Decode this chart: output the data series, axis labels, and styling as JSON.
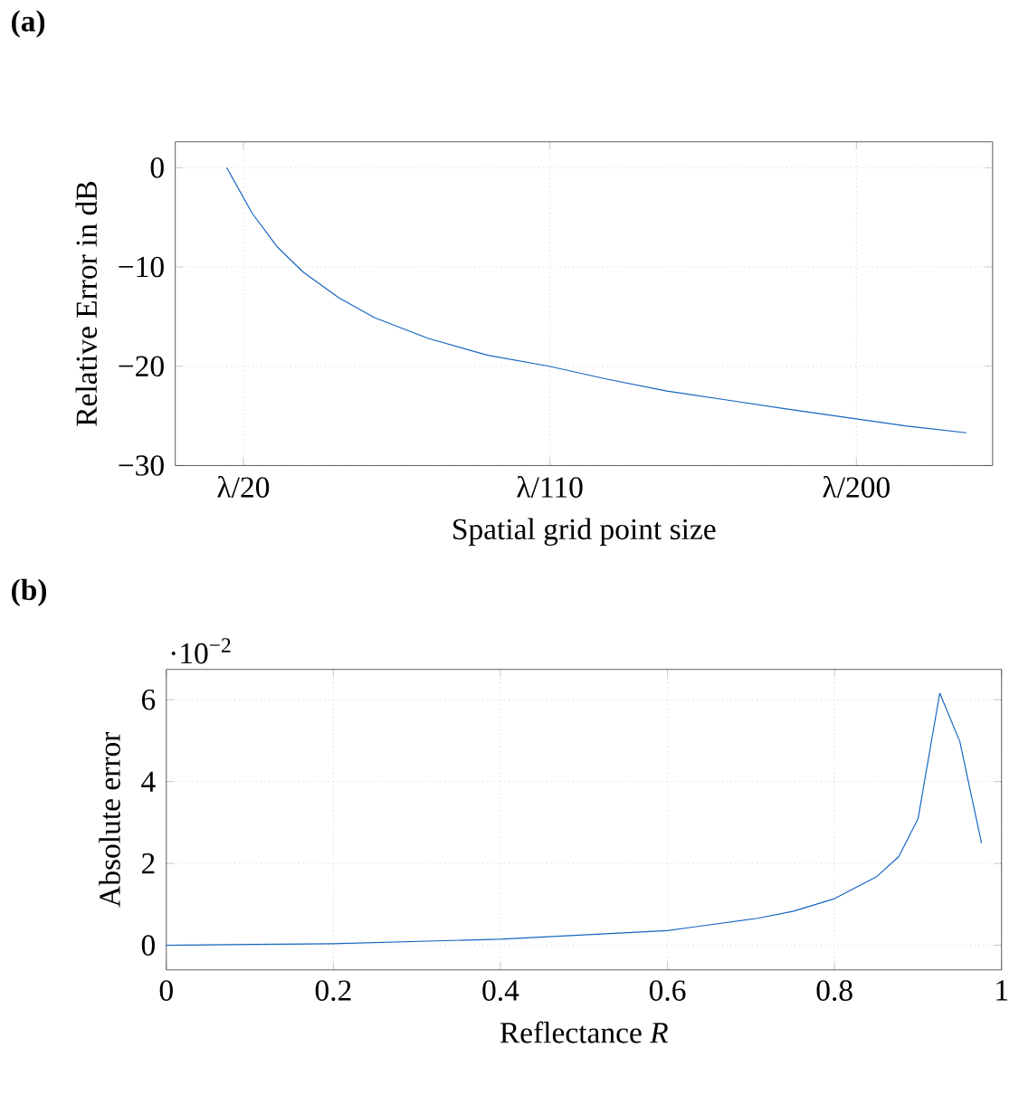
{
  "chart_data": [
    {
      "type": "line",
      "title": "(a)",
      "xlabel": "Spatial grid point size",
      "ylabel": "Relative Error in dB",
      "xlim": [
        0,
        240
      ],
      "ylim": [
        -30,
        2.6
      ],
      "xticks": [
        {
          "value": 20,
          "label": "λ/20"
        },
        {
          "value": 110,
          "label": "λ/110"
        },
        {
          "value": 200,
          "label": "λ/200"
        }
      ],
      "yticks": [
        {
          "value": -30,
          "label": "−30"
        },
        {
          "value": -20,
          "label": "−20"
        },
        {
          "value": -10,
          "label": "−10"
        },
        0
      ],
      "grid": true,
      "series": [
        {
          "color": "#1565c0",
          "x": [
            15.1,
            22.6,
            30,
            37.5,
            48,
            58.5,
            74.3,
            91.8,
            109.8,
            126.8,
            144.3,
            161.9,
            179.4,
            199.9,
            214.4,
            232.3
          ],
          "values": [
            0,
            -4.6,
            -8.0,
            -10.5,
            -13.1,
            -15.1,
            -17.2,
            -18.9,
            -20.0,
            -21.3,
            -22.5,
            -23.4,
            -24.3,
            -25.3,
            -26.0,
            -26.7
          ]
        }
      ]
    },
    {
      "type": "line",
      "title": "(b)",
      "xlabel": "Reflectance *R*",
      "ylabel": "Absolute error",
      "annotations": [
        "·10$^{−2}$"
      ],
      "xlim": [
        0,
        1
      ],
      "ylim": [
        -0.6,
        6.74
      ],
      "xticks": [
        0,
        0.2,
        0.4,
        0.6,
        0.8,
        1
      ],
      "yticks": [
        0,
        2,
        4,
        6
      ],
      "grid": true,
      "series": [
        {
          "color": "#1565c0",
          "x": [
            0,
            0.2,
            0.4,
            0.6,
            0.708,
            0.75,
            0.8,
            0.85,
            0.877,
            0.9,
            0.926,
            0.95,
            0.976
          ],
          "values": [
            0,
            0.04,
            0.15,
            0.36,
            0.66,
            0.83,
            1.14,
            1.67,
            2.17,
            3.09,
            6.16,
            4.98,
            2.5
          ]
        }
      ]
    }
  ]
}
